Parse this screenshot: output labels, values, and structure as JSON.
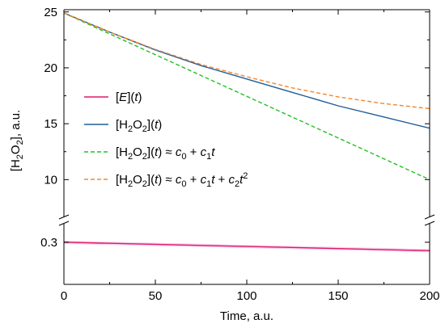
{
  "chart_data": {
    "type": "line",
    "title": "",
    "xlabel": "Time, a.u.",
    "ylabel_parts": [
      {
        "t": "[H"
      },
      {
        "t": "2",
        "sub": true
      },
      {
        "t": "O"
      },
      {
        "t": "2",
        "sub": true
      },
      {
        "t": "], a.u."
      }
    ],
    "xlim": [
      0,
      200
    ],
    "x_ticks": [
      0,
      50,
      100,
      150,
      200
    ],
    "broken_y_axis": true,
    "y_upper_range": [
      8.0,
      25.2
    ],
    "y_upper_ticks": [
      10,
      15,
      20,
      25
    ],
    "y_lower_range": [
      0.25,
      0.32
    ],
    "y_lower_ticks": [
      0.3
    ],
    "grid": false,
    "legend_position": "center-left",
    "series": [
      {
        "id": "E",
        "panel": "lower",
        "color": "#e0186c",
        "dash": "solid",
        "band_color": "#f6d2ea",
        "x": [
          0,
          50,
          100,
          150,
          200
        ],
        "y": [
          0.3,
          0.2975,
          0.295,
          0.2925,
          0.29
        ],
        "legend_parts": [
          {
            "t": "["
          },
          {
            "t": "E",
            "it": true
          },
          {
            "t": "]("
          },
          {
            "t": "t",
            "it": true
          },
          {
            "t": ")"
          }
        ]
      },
      {
        "id": "H2O2",
        "panel": "upper",
        "color": "#1f5d98",
        "dash": "solid",
        "x": [
          0,
          25,
          50,
          75,
          100,
          125,
          150,
          175,
          200
        ],
        "y": [
          24.9,
          23.2,
          21.6,
          20.2,
          19.0,
          17.8,
          16.6,
          15.6,
          14.6
        ],
        "legend_parts": [
          {
            "t": "[H"
          },
          {
            "t": "2",
            "sub": true
          },
          {
            "t": "O"
          },
          {
            "t": "2",
            "sub": true
          },
          {
            "t": "]("
          },
          {
            "t": "t",
            "it": true
          },
          {
            "t": ")"
          }
        ]
      },
      {
        "id": "linear",
        "panel": "upper",
        "color": "#22c022",
        "dash": "dashed",
        "x": [
          0,
          200
        ],
        "y": [
          24.9,
          10.0
        ],
        "legend_parts": [
          {
            "t": "[H"
          },
          {
            "t": "2",
            "sub": true
          },
          {
            "t": "O"
          },
          {
            "t": "2",
            "sub": true
          },
          {
            "t": "]("
          },
          {
            "t": "t",
            "it": true
          },
          {
            "t": ") ≈ "
          },
          {
            "t": "c",
            "it": true
          },
          {
            "t": "0",
            "sub": true
          },
          {
            "t": " + "
          },
          {
            "t": "c",
            "it": true
          },
          {
            "t": "1",
            "sub": true
          },
          {
            "t": "t",
            "it": true
          }
        ]
      },
      {
        "id": "quadratic",
        "panel": "upper",
        "color": "#f5852a",
        "dash": "dashed",
        "x": [
          0,
          25,
          50,
          75,
          100,
          125,
          150,
          175,
          200
        ],
        "y": [
          24.9,
          23.2,
          21.65,
          20.3,
          19.2,
          18.2,
          17.4,
          16.8,
          16.35
        ],
        "legend_parts": [
          {
            "t": "[H"
          },
          {
            "t": "2",
            "sub": true
          },
          {
            "t": "O"
          },
          {
            "t": "2",
            "sub": true
          },
          {
            "t": "]("
          },
          {
            "t": "t",
            "it": true
          },
          {
            "t": ") ≈ "
          },
          {
            "t": "c",
            "it": true
          },
          {
            "t": "0",
            "sub": true
          },
          {
            "t": " + "
          },
          {
            "t": "c",
            "it": true
          },
          {
            "t": "1",
            "sub": true
          },
          {
            "t": "t",
            "it": true
          },
          {
            "t": " + "
          },
          {
            "t": "c",
            "it": true
          },
          {
            "t": "2",
            "sub": true
          },
          {
            "t": "t",
            "it": true
          },
          {
            "t": "2",
            "sup": true
          }
        ]
      }
    ],
    "legend_order": [
      "E",
      "H2O2",
      "linear",
      "quadratic"
    ]
  }
}
